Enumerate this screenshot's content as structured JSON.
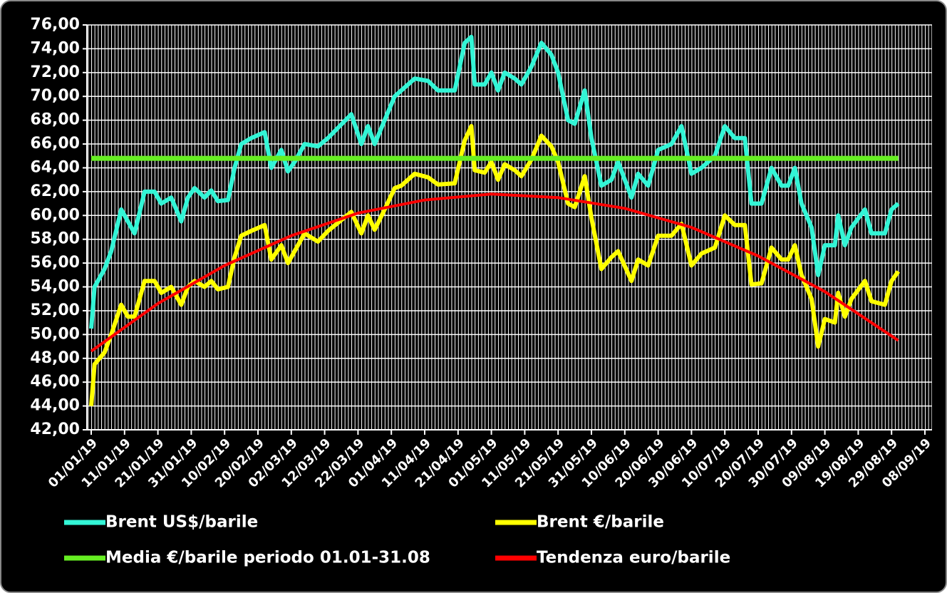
{
  "chart_data": {
    "type": "line",
    "x": [
      "01/01/19",
      "02/01/19",
      "05/01/19",
      "07/01/19",
      "10/01/19",
      "12/01/19",
      "14/01/19",
      "17/01/19",
      "20/01/19",
      "22/01/19",
      "25/01/19",
      "28/01/19",
      "30/01/19",
      "01/02/19",
      "04/02/19",
      "06/02/19",
      "08/02/19",
      "11/02/19",
      "13/02/19",
      "15/02/19",
      "18/02/19",
      "22/02/19",
      "24/02/19",
      "27/02/19",
      "01/03/19",
      "03/03/19",
      "06/03/19",
      "10/03/19",
      "13/03/19",
      "20/03/19",
      "23/03/19",
      "25/03/19",
      "27/03/19",
      "30/03/19",
      "02/04/19",
      "04/04/19",
      "08/04/19",
      "12/04/19",
      "15/04/19",
      "20/04/19",
      "23/04/19",
      "25/04/19",
      "26/04/19",
      "29/04/19",
      "01/05/19",
      "03/05/19",
      "05/05/19",
      "08/05/19",
      "10/05/19",
      "13/05/19",
      "16/05/19",
      "19/05/19",
      "21/05/19",
      "24/05/19",
      "26/05/19",
      "29/05/19",
      "31/05/19",
      "03/06/19",
      "06/06/19",
      "08/06/19",
      "12/06/19",
      "14/06/19",
      "17/06/19",
      "20/06/19",
      "24/06/19",
      "27/06/19",
      "30/06/19",
      "03/07/19",
      "07/07/19",
      "10/07/19",
      "13/07/19",
      "16/07/19",
      "18/07/19",
      "21/07/19",
      "24/07/19",
      "27/07/19",
      "29/07/19",
      "31/07/19",
      "02/08/19",
      "05/08/19",
      "07/08/19",
      "09/08/19",
      "12/08/19",
      "13/08/19",
      "15/08/19",
      "17/08/19",
      "21/08/19",
      "23/08/19",
      "27/08/19",
      "29/08/19",
      "31/08/19"
    ],
    "series": [
      {
        "name": "Brent US$/barile",
        "color": "#33f5d6",
        "values": [
          50.5,
          54,
          55.5,
          57,
          60.5,
          59.5,
          58.5,
          62,
          62,
          61,
          61.5,
          59.5,
          61.5,
          62.3,
          61.5,
          62.1,
          61.2,
          61.3,
          64,
          66,
          66.5,
          67,
          64,
          65.5,
          63.7,
          64.5,
          66,
          65.8,
          66.5,
          68.5,
          66,
          67.5,
          66,
          68,
          70,
          70.5,
          71.5,
          71.3,
          70.5,
          70.5,
          74.5,
          75,
          71,
          71,
          72,
          70.5,
          72,
          71.5,
          71,
          72.5,
          74.5,
          73.5,
          72,
          68,
          67.7,
          70.5,
          66.5,
          62.5,
          63,
          64.5,
          61.5,
          63.5,
          62.5,
          65.5,
          66,
          67.5,
          63.5,
          64,
          65,
          67.5,
          66.5,
          66.5,
          61,
          61,
          64,
          62.5,
          62.5,
          64,
          61,
          59,
          55,
          57.5,
          57.5,
          60,
          57.5,
          59,
          60.5,
          58.5,
          58.5,
          60.5,
          61
        ]
      },
      {
        "name": "Brent €/barile",
        "color": "#ffff00",
        "values": [
          44,
          47.5,
          48.5,
          50,
          52.5,
          51.5,
          51.5,
          54.5,
          54.5,
          53.5,
          54,
          52.5,
          54,
          54.5,
          54,
          54.5,
          53.8,
          54,
          56.5,
          58.3,
          58.7,
          59.2,
          56.3,
          57.5,
          56,
          57,
          58.5,
          57.8,
          58.7,
          60.3,
          58.5,
          60,
          58.8,
          60.5,
          62.3,
          62.5,
          63.5,
          63.2,
          62.6,
          62.7,
          66.3,
          67.5,
          63.8,
          63.6,
          64.5,
          63,
          64.3,
          63.8,
          63.3,
          64.7,
          66.7,
          65.8,
          64.5,
          61,
          60.7,
          63.3,
          59.8,
          55.5,
          56.5,
          57,
          54.5,
          56.3,
          55.8,
          58.3,
          58.3,
          59.3,
          55.8,
          56.8,
          57.3,
          60,
          59.2,
          59.2,
          54.2,
          54.3,
          57.3,
          56.3,
          56.3,
          57.5,
          55,
          53,
          49,
          51.3,
          51,
          53.5,
          51.5,
          53,
          54.5,
          52.8,
          52.5,
          54.5,
          55.3
        ]
      },
      {
        "name": "Media €/barile periodo 01.01-31.08",
        "color": "#66ee22",
        "x": [
          "01/01/19",
          "31/08/19"
        ],
        "values": [
          64.8,
          64.8
        ]
      },
      {
        "name": "Tendenza euro/barile",
        "color": "#ff0000",
        "x": [
          "01/01/19",
          "21/01/19",
          "10/02/19",
          "02/03/19",
          "22/03/19",
          "11/04/19",
          "01/05/19",
          "21/05/19",
          "10/06/19",
          "30/06/19",
          "20/07/19",
          "09/08/19",
          "31/08/19"
        ],
        "values": [
          48.6,
          52.6,
          55.8,
          58.3,
          60.2,
          61.3,
          61.8,
          61.5,
          60.6,
          59,
          56.6,
          53.6,
          49.5
        ]
      }
    ],
    "xlim": [
      "01/01/19",
      "08/09/19"
    ],
    "xticks": [
      "01/01/19",
      "11/01/19",
      "21/01/19",
      "31/01/19",
      "10/02/19",
      "20/02/19",
      "02/03/19",
      "12/03/19",
      "22/03/19",
      "01/04/19",
      "11/04/19",
      "21/04/19",
      "01/05/19",
      "11/05/19",
      "21/05/19",
      "31/05/19",
      "10/06/19",
      "20/06/19",
      "30/06/19",
      "10/07/19",
      "20/07/19",
      "30/07/19",
      "09/08/19",
      "19/08/19",
      "29/08/19",
      "08/09/19"
    ],
    "ylim": [
      42,
      76
    ],
    "yticks": [
      {
        "value": 42,
        "label": "42,00"
      },
      {
        "value": 44,
        "label": "44,00"
      },
      {
        "value": 46,
        "label": "46,00"
      },
      {
        "value": 48,
        "label": "48,00"
      },
      {
        "value": 50,
        "label": "50,00"
      },
      {
        "value": 52,
        "label": "52,00"
      },
      {
        "value": 54,
        "label": "54,00"
      },
      {
        "value": 56,
        "label": "56,00"
      },
      {
        "value": 58,
        "label": "58,00"
      },
      {
        "value": 60,
        "label": "60,00"
      },
      {
        "value": 62,
        "label": "62,00"
      },
      {
        "value": 64,
        "label": "64,00"
      },
      {
        "value": 66,
        "label": "66,00"
      },
      {
        "value": 68,
        "label": "68,00"
      },
      {
        "value": 70,
        "label": "70,00"
      },
      {
        "value": 72,
        "label": "72,00"
      },
      {
        "value": 74,
        "label": "74,00"
      },
      {
        "value": 76,
        "label": "76,00"
      }
    ],
    "grid": true,
    "legend": "bottom"
  }
}
